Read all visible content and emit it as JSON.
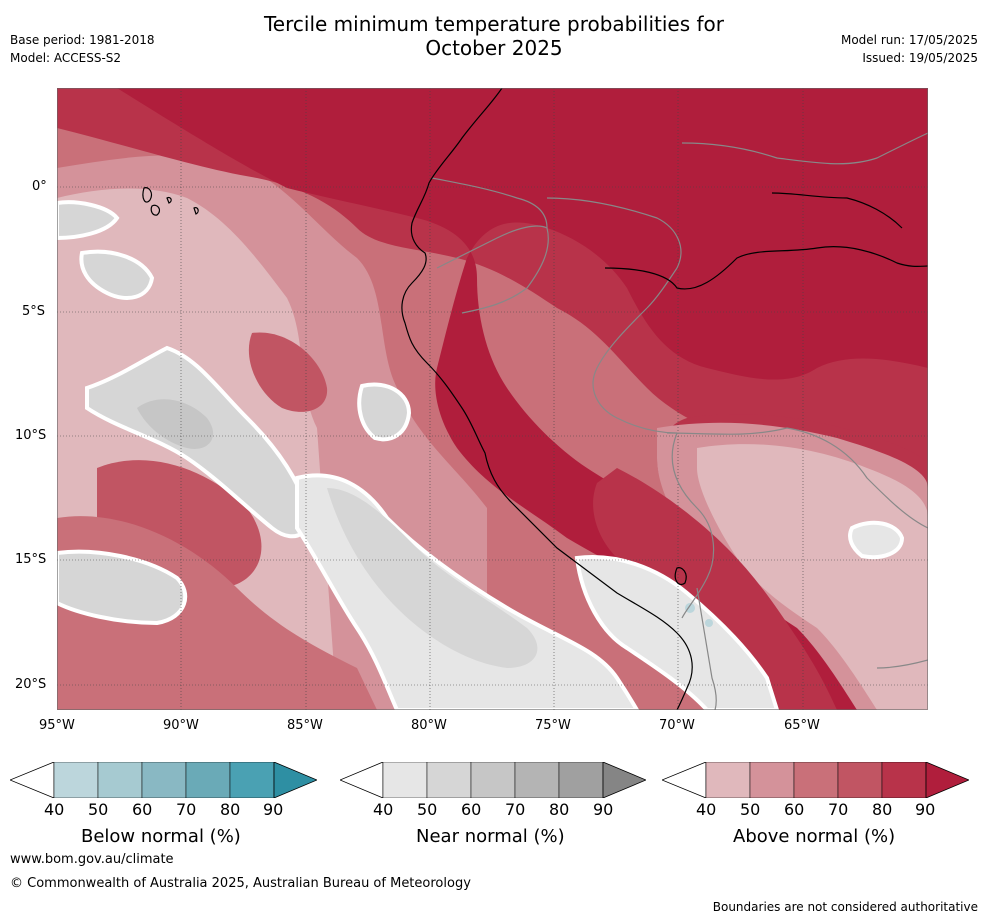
{
  "header": {
    "base_period": "Base period: 1981-2018",
    "model": "Model: ACCESS-S2",
    "title_line1": "Tercile minimum temperature probabilities for",
    "title_line2": "October 2025",
    "model_run": "Model run: 17/05/2025",
    "issued": "Issued: 19/05/2025"
  },
  "map": {
    "lat_labels": [
      "0°",
      "5°S",
      "10°S",
      "15°S",
      "20°S"
    ],
    "lon_labels": [
      "95°W",
      "90°W",
      "85°W",
      "80°W",
      "75°W",
      "70°W",
      "65°W"
    ],
    "colors": {
      "grey40": "#e6e6e6",
      "grey50": "#d6d6d6",
      "grey60": "#c6c6c6",
      "red40": "#e0b8bc",
      "red50": "#d4929a",
      "red60": "#c97079",
      "red70": "#c15563",
      "red80": "#b8334a",
      "red90": "#b01e3c",
      "coast": "#000000",
      "border": "#888888"
    }
  },
  "legends": {
    "below": {
      "title": "Below normal (%)",
      "ticks": [
        "40",
        "50",
        "60",
        "70",
        "80",
        "90"
      ],
      "colors": [
        "#ffffff",
        "#bcd6dc",
        "#a6cad1",
        "#89b8c3",
        "#6aaab7",
        "#4aa1b3",
        "#2e8fa3"
      ]
    },
    "near": {
      "title": "Near normal (%)",
      "ticks": [
        "40",
        "50",
        "60",
        "70",
        "80",
        "90"
      ],
      "colors": [
        "#ffffff",
        "#e6e6e6",
        "#d6d6d6",
        "#c6c6c6",
        "#b4b4b4",
        "#a0a0a0",
        "#858585"
      ]
    },
    "above": {
      "title": "Above normal (%)",
      "ticks": [
        "40",
        "50",
        "60",
        "70",
        "80",
        "90"
      ],
      "colors": [
        "#ffffff",
        "#e0b8bc",
        "#d4929a",
        "#c97079",
        "#c15563",
        "#b8334a",
        "#b01e3c"
      ]
    }
  },
  "footer": {
    "url": "www.bom.gov.au/climate",
    "copyright": "© Commonwealth of Australia 2025, Australian Bureau of Meteorology",
    "disclaimer": "Boundaries are not considered authoritative"
  }
}
